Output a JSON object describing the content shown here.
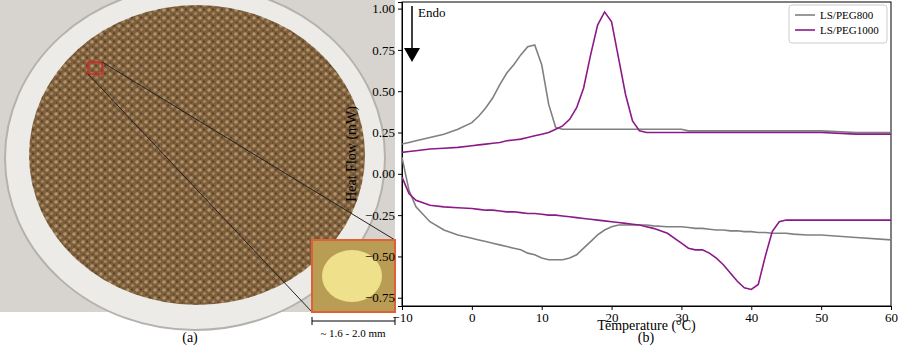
{
  "chart_data": {
    "type": "line",
    "x_label": "Temperature (°C)",
    "y_label": "Heat Flow (mW)",
    "annotations": [
      "Endo"
    ],
    "xlim": [
      -10,
      60
    ],
    "xticks": [
      {
        "value": -10,
        "label": "−10"
      },
      0,
      10,
      20,
      30,
      40,
      50,
      60
    ],
    "ylim": [
      -0.8,
      1.04
    ],
    "yticks": [
      {
        "value": -0.75,
        "label": "−0.75"
      },
      {
        "value": -0.5,
        "label": "−0.50"
      },
      {
        "value": -0.25,
        "label": "−0.25"
      },
      {
        "value": 0,
        "label": "0.00"
      },
      {
        "value": 0.25,
        "label": "0.25"
      },
      {
        "value": 0.5,
        "label": "0.50"
      },
      {
        "value": 0.75,
        "label": "0.75"
      },
      {
        "value": 1,
        "label": "1.00"
      }
    ],
    "grid": false,
    "legend": "upper right",
    "x": [
      -10,
      -9,
      -8,
      -6,
      -4,
      -2,
      0,
      1,
      2,
      3,
      4,
      5,
      6,
      7,
      8,
      9,
      10,
      11,
      12,
      13,
      14,
      15,
      16,
      17,
      18,
      19,
      20,
      21,
      22,
      23,
      24,
      25,
      26,
      28,
      30,
      31,
      32,
      33,
      34,
      35,
      36,
      37,
      38,
      39,
      40,
      41,
      42,
      43,
      44,
      45,
      46,
      48,
      50,
      55,
      60
    ],
    "series": [
      {
        "name": "LS/PEG800",
        "color": "#808080",
        "values": [
          0.18,
          0.19,
          0.2,
          0.22,
          0.24,
          0.27,
          0.31,
          0.35,
          0.4,
          0.46,
          0.54,
          0.61,
          0.66,
          0.72,
          0.77,
          0.78,
          0.66,
          0.42,
          0.28,
          0.27,
          0.27,
          0.27,
          0.27,
          0.27,
          0.27,
          0.27,
          0.27,
          0.27,
          0.27,
          0.27,
          0.27,
          0.27,
          0.27,
          0.27,
          0.27,
          0.26,
          0.26,
          0.26,
          0.26,
          0.26,
          0.26,
          0.26,
          0.26,
          0.26,
          0.26,
          0.26,
          0.26,
          0.26,
          0.26,
          0.26,
          0.26,
          0.26,
          0.26,
          0.25,
          0.25
        ]
      },
      {
        "name": "LS/PEG1000",
        "color": "#8b1a89",
        "values": [
          0.13,
          0.135,
          0.14,
          0.15,
          0.155,
          0.16,
          0.17,
          0.175,
          0.18,
          0.185,
          0.19,
          0.2,
          0.205,
          0.21,
          0.22,
          0.23,
          0.24,
          0.25,
          0.27,
          0.29,
          0.33,
          0.4,
          0.52,
          0.72,
          0.9,
          0.98,
          0.92,
          0.7,
          0.48,
          0.32,
          0.26,
          0.25,
          0.25,
          0.25,
          0.25,
          0.25,
          0.25,
          0.25,
          0.25,
          0.25,
          0.25,
          0.25,
          0.25,
          0.25,
          0.25,
          0.25,
          0.25,
          0.25,
          0.25,
          0.25,
          0.25,
          0.25,
          0.25,
          0.24,
          0.24
        ]
      },
      {
        "color": "#808080",
        "values": [
          0.1,
          -0.1,
          -0.2,
          -0.29,
          -0.34,
          -0.37,
          -0.39,
          -0.4,
          -0.41,
          -0.42,
          -0.43,
          -0.44,
          -0.45,
          -0.46,
          -0.48,
          -0.49,
          -0.51,
          -0.52,
          -0.52,
          -0.52,
          -0.51,
          -0.49,
          -0.45,
          -0.41,
          -0.37,
          -0.34,
          -0.32,
          -0.31,
          -0.31,
          -0.31,
          -0.31,
          -0.31,
          -0.315,
          -0.32,
          -0.32,
          -0.325,
          -0.33,
          -0.33,
          -0.335,
          -0.34,
          -0.34,
          -0.345,
          -0.345,
          -0.35,
          -0.35,
          -0.355,
          -0.355,
          -0.36,
          -0.36,
          -0.36,
          -0.365,
          -0.37,
          -0.37,
          -0.385,
          -0.4
        ]
      },
      {
        "color": "#8b1a89",
        "values": [
          -0.02,
          -0.12,
          -0.16,
          -0.19,
          -0.2,
          -0.205,
          -0.21,
          -0.215,
          -0.22,
          -0.22,
          -0.225,
          -0.23,
          -0.23,
          -0.235,
          -0.24,
          -0.24,
          -0.245,
          -0.25,
          -0.25,
          -0.255,
          -0.26,
          -0.265,
          -0.27,
          -0.275,
          -0.28,
          -0.285,
          -0.29,
          -0.295,
          -0.3,
          -0.305,
          -0.31,
          -0.32,
          -0.33,
          -0.36,
          -0.42,
          -0.45,
          -0.46,
          -0.46,
          -0.48,
          -0.51,
          -0.55,
          -0.6,
          -0.65,
          -0.69,
          -0.7,
          -0.67,
          -0.5,
          -0.35,
          -0.29,
          -0.28,
          -0.28,
          -0.28,
          -0.28,
          -0.28,
          -0.28
        ]
      }
    ]
  },
  "figure": {
    "panels": [
      {
        "label": "(a)",
        "scale_bar": "~ 1.6 - 2.0 mm"
      },
      {
        "label": "(b)"
      }
    ]
  }
}
